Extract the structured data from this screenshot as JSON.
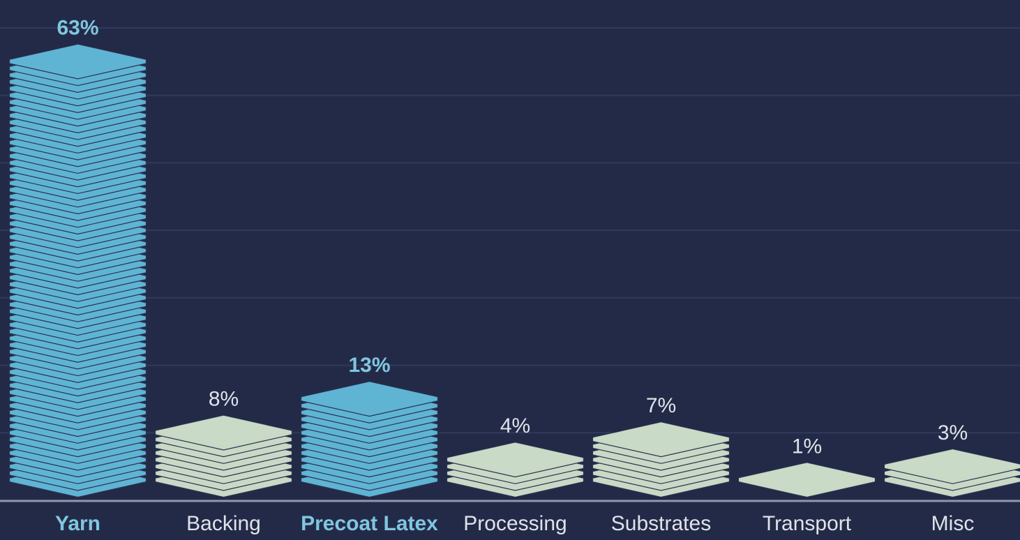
{
  "chart_data": {
    "type": "layered-bar",
    "categories": [
      "Yarn",
      "Backing",
      "Precoat Latex",
      "Processing",
      "Substrates",
      "Transport",
      "Misc"
    ],
    "values": [
      63,
      8,
      13,
      4,
      7,
      1,
      3
    ],
    "value_labels": [
      "63%",
      "8%",
      "13%",
      "4%",
      "7%",
      "1%",
      "3%"
    ],
    "colors": [
      "#5fb4d4",
      "#c9d9c6",
      "#5fb4d4",
      "#c9d9c6",
      "#c9d9c6",
      "#c9d9c6",
      "#c9d9c6"
    ],
    "highlight": [
      true,
      false,
      true,
      false,
      false,
      false,
      false
    ],
    "ylim": [
      0,
      70
    ],
    "yticks": [
      10,
      20,
      30,
      40,
      50,
      60,
      70
    ],
    "grid": true
  }
}
